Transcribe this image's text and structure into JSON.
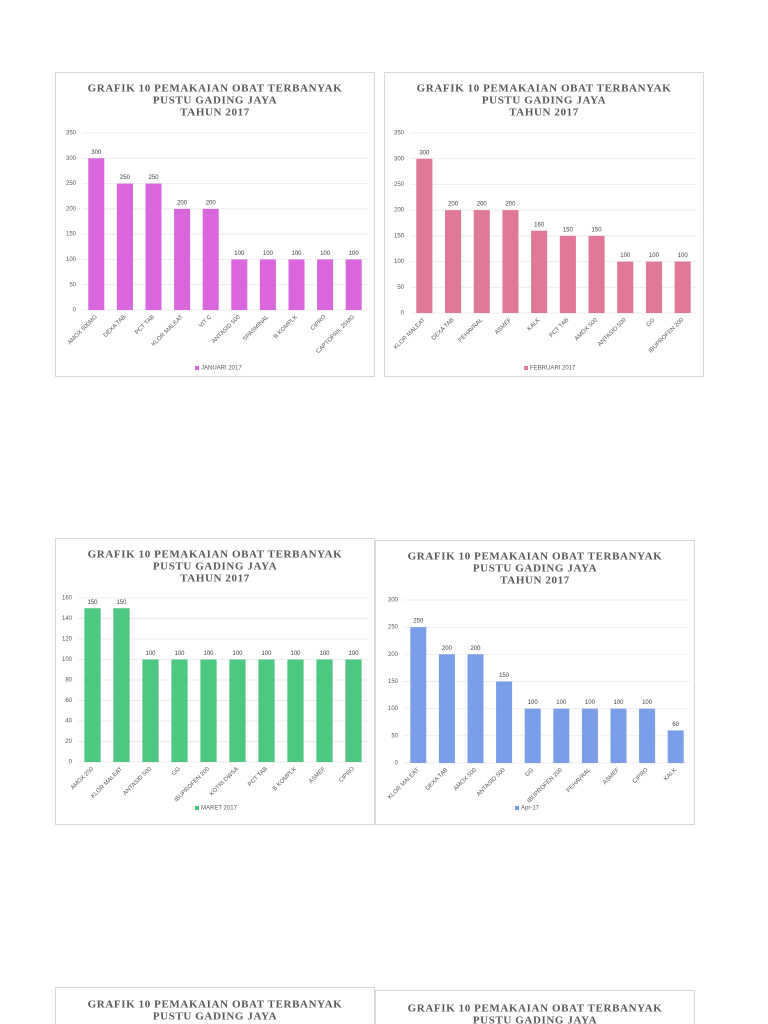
{
  "chart_data": [
    {
      "type": "bar",
      "title": [
        "GRAFIK 10 PEMAKAIAN OBAT TERBANYAK",
        "PUSTU GADING JAYA",
        "TAHUN 2017"
      ],
      "categories": [
        "AMOX 500MG",
        "DEXA TAB",
        "PCT TAB",
        "KLOR MALEAT",
        "VIT C",
        "ANTASID 500",
        "SPASMINAL",
        "B KOMPLK",
        "CIPRO",
        "CAPTOPRIL 25MG"
      ],
      "series": [
        {
          "name": "JANUARI 2017",
          "color": "#d966dd",
          "values": [
            300,
            250,
            250,
            200,
            200,
            100,
            100,
            100,
            100,
            100
          ]
        }
      ],
      "ylim": [
        0,
        350
      ],
      "yticks": [
        0,
        50,
        100,
        150,
        200,
        250,
        300,
        350
      ],
      "grid": true
    },
    {
      "type": "bar",
      "title": [
        "GRAFIK 10 PEMAKAIAN OBAT TERBANYAK",
        "PUSTU GADING JAYA",
        "TAHUN 2017"
      ],
      "categories": [
        "KLOR MALEAT",
        "DEXA TAB",
        "PEHAVRAL",
        "ASMEF",
        "KALK",
        "PCT TAB",
        "AMOX 500",
        "ANTASID 500",
        "GG",
        "IBUPROFEN 200"
      ],
      "series": [
        {
          "name": "FEBRUARI 2017",
          "color": "#e07898",
          "values": [
            300,
            200,
            200,
            200,
            160,
            150,
            150,
            100,
            100,
            100
          ]
        }
      ],
      "ylim": [
        0,
        350
      ],
      "yticks": [
        0,
        50,
        100,
        150,
        200,
        250,
        300,
        350
      ],
      "grid": true
    },
    {
      "type": "bar",
      "title": [
        "GRAFIK 10 PEMAKAIAN OBAT TERBANYAK",
        "PUSTU GADING JAYA",
        "TAHUN 2017"
      ],
      "categories": [
        "AMOX 250",
        "KLOR MALEAT",
        "ANTASID 500",
        "GG",
        "IBUPROFEN 200",
        "KOTRI DWSA",
        "PCT TAB",
        "B KOMPLK",
        "ASMEF",
        "CIPRO"
      ],
      "series": [
        {
          "name": "MARET 2017",
          "color": "#4dc781",
          "values": [
            150,
            150,
            100,
            100,
            100,
            100,
            100,
            100,
            100,
            100
          ]
        }
      ],
      "ylim": [
        0,
        160
      ],
      "yticks": [
        0,
        20,
        40,
        60,
        80,
        100,
        120,
        140,
        160
      ],
      "grid": true
    },
    {
      "type": "bar",
      "title": [
        "GRAFIK 10 PEMAKAIAN OBAT TERBANYAK",
        "PUSTU GADING JAYA",
        "TAHUN 2017"
      ],
      "categories": [
        "KLOR MALEAT",
        "DEXA TAB",
        "AMOX 500",
        "ANTASID 500",
        "GG",
        "IBUPROFEN 200",
        "PEHAVRAL",
        "ASMEF",
        "CIPRO",
        "KALK"
      ],
      "series": [
        {
          "name": "Apr-17",
          "color": "#7b9ee8",
          "values": [
            250,
            200,
            200,
            150,
            100,
            100,
            100,
            100,
            100,
            60
          ]
        }
      ],
      "ylim": [
        0,
        300
      ],
      "yticks": [
        0,
        50,
        100,
        150,
        200,
        250,
        300
      ],
      "grid": true
    },
    {
      "type": "bar",
      "title": [
        "GRAFIK 10 PEMAKAIAN OBAT TERBANYAK",
        "PUSTU GADING JAYA"
      ]
    },
    {
      "type": "bar",
      "title": [
        "GRAFIK 10 PEMAKAIAN OBAT TERBANYAK",
        "PUSTU GADING JAYA"
      ]
    }
  ]
}
